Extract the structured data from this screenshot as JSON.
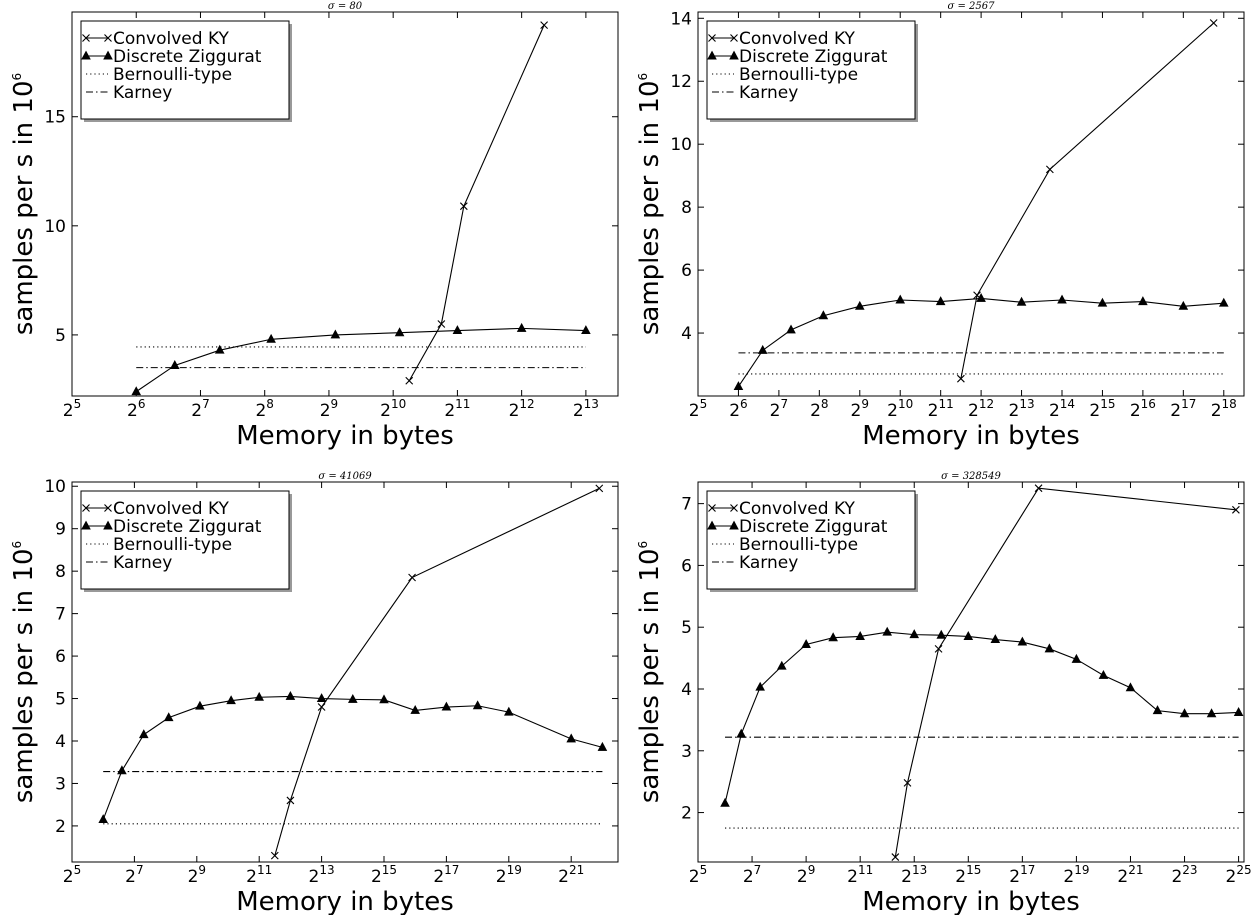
{
  "chart_data": [
    {
      "type": "line",
      "title": "σ = 80",
      "xlabel": "Memory in bytes",
      "ylabel": "samples per s in 10^6",
      "ylabel_base": "samples per s in 10",
      "ylabel_exp": "6",
      "xscale": "log2",
      "xlim": [
        5,
        13.5
      ],
      "ylim": [
        2.2,
        19.8
      ],
      "xticks": [
        5,
        6,
        7,
        8,
        9,
        10,
        11,
        12,
        13
      ],
      "xtick_labels": [
        [
          "2",
          "5"
        ],
        [
          "2",
          "6"
        ],
        [
          "2",
          "7"
        ],
        [
          "2",
          "8"
        ],
        [
          "2",
          "9"
        ],
        [
          "2",
          "10"
        ],
        [
          "2",
          "11"
        ],
        [
          "2",
          "12"
        ],
        [
          "2",
          "13"
        ]
      ],
      "yticks": [
        5,
        10,
        15
      ],
      "ytick_labels": [
        "5",
        "10",
        "15"
      ],
      "grid": false,
      "legend": "top-left",
      "series": [
        {
          "name": "Convolved KY",
          "marker": "x",
          "line": "solid",
          "x": [
            10.25,
            10.75,
            11.1,
            12.35
          ],
          "y": [
            2.9,
            5.5,
            10.9,
            19.2
          ]
        },
        {
          "name": "Discrete Ziggurat",
          "marker": "triangle",
          "line": "solid",
          "x": [
            6,
            6.6,
            7.3,
            8.1,
            9.1,
            10.1,
            11.0,
            12.0,
            13.0
          ],
          "y": [
            2.4,
            3.6,
            4.3,
            4.8,
            5.0,
            5.1,
            5.2,
            5.3,
            5.2
          ]
        },
        {
          "name": "Bernoulli-type",
          "marker": "none",
          "line": "dotted",
          "x": [
            6,
            13
          ],
          "y": [
            4.45,
            4.45
          ]
        },
        {
          "name": "Karney",
          "marker": "none",
          "line": "dashdot",
          "x": [
            6,
            13
          ],
          "y": [
            3.5,
            3.5
          ]
        }
      ]
    },
    {
      "type": "line",
      "title": "σ = 2567",
      "xlabel": "Memory in bytes",
      "ylabel": "samples per s in 10^6",
      "ylabel_base": "samples per s in 10",
      "ylabel_exp": "6",
      "xscale": "log2",
      "xlim": [
        5,
        18.5
      ],
      "ylim": [
        2.0,
        14.2
      ],
      "xticks": [
        5,
        6,
        7,
        8,
        9,
        10,
        11,
        12,
        13,
        14,
        15,
        16,
        17,
        18
      ],
      "xtick_labels": [
        [
          "2",
          "5"
        ],
        [
          "2",
          "6"
        ],
        [
          "2",
          "7"
        ],
        [
          "2",
          "8"
        ],
        [
          "2",
          "9"
        ],
        [
          "2",
          "10"
        ],
        [
          "2",
          "11"
        ],
        [
          "2",
          "12"
        ],
        [
          "2",
          "13"
        ],
        [
          "2",
          "14"
        ],
        [
          "2",
          "15"
        ],
        [
          "2",
          "16"
        ],
        [
          "2",
          "17"
        ],
        [
          "2",
          "18"
        ]
      ],
      "yticks": [
        4,
        6,
        8,
        10,
        12,
        14
      ],
      "ytick_labels": [
        "4",
        "6",
        "8",
        "10",
        "12",
        "14"
      ],
      "grid": false,
      "legend": "top-left",
      "series": [
        {
          "name": "Convolved KY",
          "marker": "x",
          "line": "solid",
          "x": [
            11.5,
            11.9,
            13.7,
            17.75
          ],
          "y": [
            2.55,
            5.2,
            9.2,
            13.85
          ]
        },
        {
          "name": "Discrete Ziggurat",
          "marker": "triangle",
          "line": "solid",
          "x": [
            6,
            6.6,
            7.3,
            8.1,
            9.0,
            10.0,
            11.0,
            12.0,
            13.0,
            14.0,
            15.0,
            16.0,
            17.0,
            18.0
          ],
          "y": [
            2.3,
            3.45,
            4.1,
            4.55,
            4.85,
            5.05,
            5.0,
            5.1,
            4.98,
            5.05,
            4.95,
            5.0,
            4.85,
            4.95
          ]
        },
        {
          "name": "Bernoulli-type",
          "marker": "none",
          "line": "dotted",
          "x": [
            6,
            18
          ],
          "y": [
            2.7,
            2.7
          ]
        },
        {
          "name": "Karney",
          "marker": "none",
          "line": "dashdot",
          "x": [
            6,
            18
          ],
          "y": [
            3.37,
            3.37
          ]
        }
      ]
    },
    {
      "type": "line",
      "title": "σ = 41069",
      "xlabel": "Memory in bytes",
      "ylabel": "samples per s in 10^6",
      "ylabel_base": "samples per s in 10",
      "ylabel_exp": "6",
      "xscale": "log2",
      "xlim": [
        5,
        22.5
      ],
      "ylim": [
        1.15,
        10.1
      ],
      "xticks": [
        5,
        7,
        9,
        11,
        13,
        15,
        17,
        19,
        21
      ],
      "xtick_labels": [
        [
          "2",
          "5"
        ],
        [
          "2",
          "7"
        ],
        [
          "2",
          "9"
        ],
        [
          "2",
          "11"
        ],
        [
          "2",
          "13"
        ],
        [
          "2",
          "15"
        ],
        [
          "2",
          "17"
        ],
        [
          "2",
          "19"
        ],
        [
          "2",
          "21"
        ]
      ],
      "yticks": [
        2,
        3,
        4,
        5,
        6,
        7,
        8,
        9,
        10
      ],
      "ytick_labels": [
        "2",
        "3",
        "4",
        "5",
        "6",
        "7",
        "8",
        "9",
        "10"
      ],
      "grid": false,
      "legend": "top-left",
      "series": [
        {
          "name": "Convolved KY",
          "marker": "x",
          "line": "solid",
          "x": [
            11.5,
            12.0,
            13.0,
            15.9,
            21.9
          ],
          "y": [
            1.3,
            2.6,
            4.8,
            7.85,
            9.95
          ]
        },
        {
          "name": "Discrete Ziggurat",
          "marker": "triangle",
          "line": "solid",
          "x": [
            6,
            6.6,
            7.3,
            8.1,
            9.1,
            10.1,
            11.0,
            12.0,
            13.0,
            14.0,
            15.0,
            16.0,
            17.0,
            18.0,
            19.0,
            21.0,
            22.0
          ],
          "y": [
            2.15,
            3.3,
            4.15,
            4.55,
            4.82,
            4.95,
            5.03,
            5.05,
            5.0,
            4.98,
            4.97,
            4.72,
            4.8,
            4.83,
            4.68,
            4.05,
            3.85
          ]
        },
        {
          "name": "Bernoulli-type",
          "marker": "none",
          "line": "dotted",
          "x": [
            6,
            22
          ],
          "y": [
            2.05,
            2.05
          ]
        },
        {
          "name": "Karney",
          "marker": "none",
          "line": "dashdot",
          "x": [
            6,
            22
          ],
          "y": [
            3.28,
            3.28
          ]
        }
      ]
    },
    {
      "type": "line",
      "title": "σ = 328549",
      "xlabel": "Memory in bytes",
      "ylabel": "samples per s in 10^6",
      "ylabel_base": "samples per s in 10",
      "ylabel_exp": "6",
      "xscale": "log2",
      "xlim": [
        5,
        25.2
      ],
      "ylim": [
        1.2,
        7.35
      ],
      "xticks": [
        5,
        7,
        9,
        11,
        13,
        15,
        17,
        19,
        21,
        23,
        25
      ],
      "xtick_labels": [
        [
          "2",
          "5"
        ],
        [
          "2",
          "7"
        ],
        [
          "2",
          "9"
        ],
        [
          "2",
          "11"
        ],
        [
          "2",
          "13"
        ],
        [
          "2",
          "15"
        ],
        [
          "2",
          "17"
        ],
        [
          "2",
          "19"
        ],
        [
          "2",
          "21"
        ],
        [
          "2",
          "23"
        ],
        [
          "2",
          "25"
        ]
      ],
      "yticks": [
        2,
        3,
        4,
        5,
        6,
        7
      ],
      "ytick_labels": [
        "2",
        "3",
        "4",
        "5",
        "6",
        "7"
      ],
      "grid": false,
      "legend": "top-left",
      "series": [
        {
          "name": "Convolved KY",
          "marker": "x",
          "line": "solid",
          "x": [
            12.3,
            12.75,
            13.9,
            17.6,
            24.9
          ],
          "y": [
            1.28,
            2.48,
            4.65,
            7.25,
            6.9
          ]
        },
        {
          "name": "Discrete Ziggurat",
          "marker": "triangle",
          "line": "solid",
          "x": [
            6,
            6.6,
            7.3,
            8.1,
            9.0,
            10.0,
            11.0,
            12.0,
            13.0,
            14.0,
            15.0,
            16.0,
            17.0,
            18.0,
            19.0,
            20.0,
            21.0,
            22.0,
            23.0,
            24.0,
            25.0
          ],
          "y": [
            2.15,
            3.27,
            4.03,
            4.37,
            4.72,
            4.83,
            4.85,
            4.92,
            4.88,
            4.87,
            4.85,
            4.8,
            4.76,
            4.65,
            4.48,
            4.22,
            4.02,
            3.65,
            3.6,
            3.6,
            3.62
          ]
        },
        {
          "name": "Bernoulli-type",
          "marker": "none",
          "line": "dotted",
          "x": [
            6,
            25
          ],
          "y": [
            1.75,
            1.75
          ]
        },
        {
          "name": "Karney",
          "marker": "none",
          "line": "dashdot",
          "x": [
            6,
            25
          ],
          "y": [
            3.22,
            3.22
          ]
        }
      ]
    }
  ]
}
